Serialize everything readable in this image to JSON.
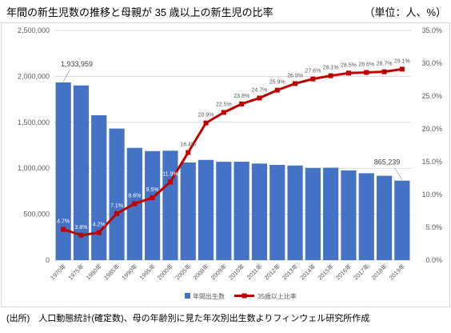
{
  "chart_data": {
    "type": "bar",
    "title": "年間の新生児数の推移と母親が 35 歳以上の新生児の比率",
    "units_note": "（単位：人、%）",
    "categories": [
      "1970年",
      "1975年",
      "1980年",
      "1985年",
      "1990年",
      "1995年",
      "2000年",
      "2005年",
      "2008年",
      "2009年",
      "2010年",
      "2011年",
      "2012年",
      "2013年",
      "2014年",
      "2015年",
      "2016年",
      "2017年",
      "2018年",
      "2019年"
    ],
    "series": [
      {
        "name": "年間出生数",
        "type": "bar",
        "axis": "left",
        "color": "#4472C4",
        "values": [
          1933959,
          1901000,
          1577000,
          1432000,
          1222000,
          1187000,
          1191000,
          1063000,
          1091000,
          1070000,
          1071000,
          1051000,
          1037000,
          1030000,
          1004000,
          1006000,
          977000,
          946000,
          918000,
          865239
        ],
        "labels": [
          "1,933,959",
          "",
          "",
          "",
          "",
          "",
          "",
          "",
          "",
          "",
          "",
          "",
          "",
          "",
          "",
          "",
          "",
          "",
          "",
          "865,239"
        ]
      },
      {
        "name": "35歳以上比率",
        "type": "line",
        "axis": "right",
        "marker": "square",
        "color": "#C00000",
        "values": [
          4.7,
          3.8,
          4.2,
          7.1,
          8.6,
          9.5,
          11.9,
          16.4,
          20.9,
          22.5,
          23.8,
          24.7,
          25.9,
          26.9,
          27.6,
          28.1,
          28.5,
          28.6,
          28.7,
          29.1
        ],
        "labels": [
          "4.7%",
          "3.8%",
          "4.2%",
          "7.1%",
          "8.6%",
          "9.5%",
          "11.9%",
          "16.4%",
          "20.9%",
          "22.5%",
          "23.8%",
          "24.7%",
          "25.9%",
          "26.9%",
          "27.6%",
          "28.1%",
          "28.5%",
          "28.6%",
          "28.7%",
          "29.1%"
        ]
      }
    ],
    "ylim": [
      0,
      2500000
    ],
    "yticks": [
      0,
      500000,
      1000000,
      1500000,
      2000000,
      2500000
    ],
    "ytick_labels": [
      "0",
      "500,000",
      "1,000,000",
      "1,500,000",
      "2,000,000",
      "2,500,000"
    ],
    "y2lim": [
      0,
      35
    ],
    "y2ticks": [
      0,
      5,
      10,
      15,
      20,
      25,
      30,
      35
    ],
    "y2tick_labels": [
      "0.0%",
      "5.0%",
      "10.0%",
      "15.0%",
      "20.0%",
      "25.0%",
      "30.0%",
      "35.0%"
    ],
    "grid": true,
    "grid_color": "#D9D9D9",
    "legend": "bottom"
  },
  "source_note": "(出所)　人口動態統計(確定数)、母の年齢別に見た年次別出生数よりフィンウェル研究所作成"
}
